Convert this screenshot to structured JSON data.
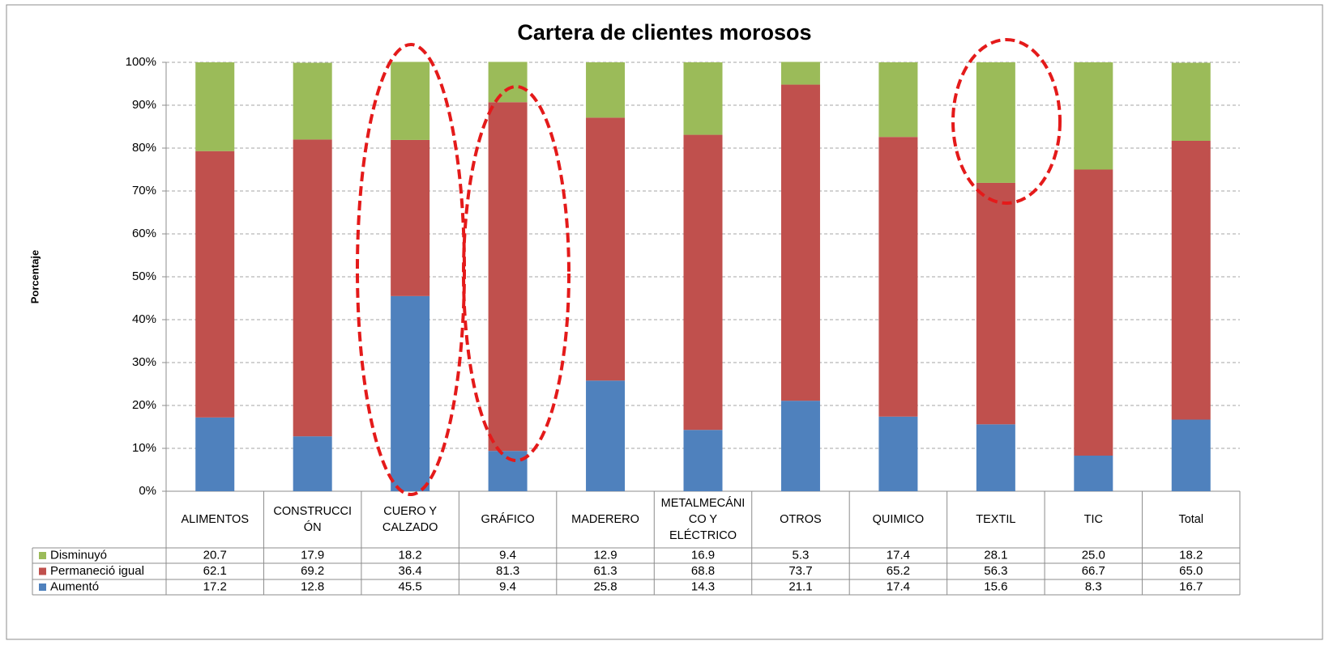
{
  "chart_data": {
    "type": "bar",
    "stacked": true,
    "title": "Cartera de clientes morosos",
    "ylabel": "Porcentaje",
    "categories": [
      "ALIMENTOS",
      "CONSTRUCCIÓN",
      "CUERO Y CALZADO",
      "GRÁFICO",
      "MADERERO",
      "METALMECÁNICO Y ELÉCTRICO",
      "OTROS",
      "QUIMICO",
      "TEXTIL",
      "TIC",
      "Total"
    ],
    "series": [
      {
        "name": "Disminuyó",
        "color": "#9bbb59",
        "values": [
          20.7,
          17.9,
          18.2,
          9.4,
          12.9,
          16.9,
          5.3,
          17.4,
          28.1,
          25.0,
          18.2
        ],
        "value_labels": [
          "20.7",
          "17.9",
          "18.2",
          "9.4",
          "12.9",
          "16.9",
          "5.3",
          "17.4",
          "28.1",
          "25.0",
          "18.2"
        ]
      },
      {
        "name": "Permaneció igual",
        "color": "#c0504d",
        "values": [
          62.1,
          69.2,
          36.4,
          81.3,
          61.3,
          68.8,
          73.7,
          65.2,
          56.3,
          66.7,
          65.0
        ],
        "value_labels": [
          "62.1",
          "69.2",
          "36.4",
          "81.3",
          "61.3",
          "68.8",
          "73.7",
          "65.2",
          "56.3",
          "66.7",
          "65.0"
        ]
      },
      {
        "name": "Aumentó",
        "color": "#4f81bd",
        "values": [
          17.2,
          12.8,
          45.5,
          9.4,
          25.8,
          14.3,
          21.1,
          17.4,
          15.6,
          8.3,
          16.7
        ],
        "value_labels": [
          "17.2",
          "12.8",
          "45.5",
          "9.4",
          "25.8",
          "14.3",
          "21.1",
          "17.4",
          "15.6",
          "8.3",
          "16.7"
        ]
      }
    ],
    "ylim": [
      0,
      100
    ],
    "yticks": [
      {
        "value": 0,
        "label": "0%"
      },
      {
        "value": 10,
        "label": "10%"
      },
      {
        "value": 20,
        "label": "20%"
      },
      {
        "value": 30,
        "label": "30%"
      },
      {
        "value": 40,
        "label": "40%"
      },
      {
        "value": 50,
        "label": "50%"
      },
      {
        "value": 60,
        "label": "60%"
      },
      {
        "value": 70,
        "label": "70%"
      },
      {
        "value": 80,
        "label": "80%"
      },
      {
        "value": 90,
        "label": "90%"
      },
      {
        "value": 100,
        "label": "100%"
      }
    ],
    "grid": true
  }
}
